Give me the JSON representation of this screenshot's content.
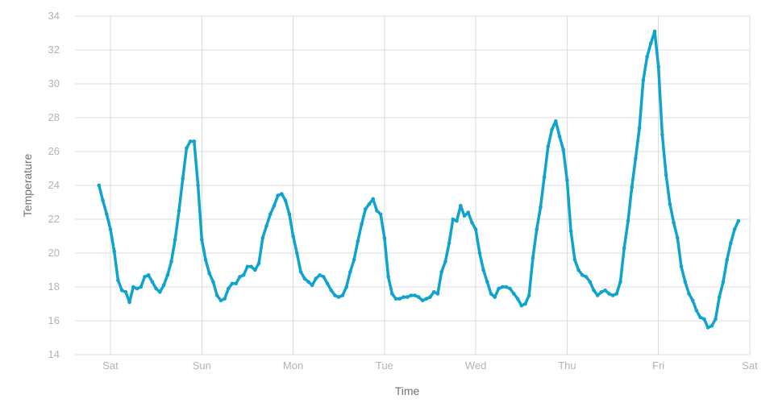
{
  "chart_data": {
    "type": "line",
    "title": "",
    "xlabel": "Time",
    "ylabel": "Temperature",
    "ylim": [
      14,
      34
    ],
    "yticks": [
      "14",
      "16",
      "18",
      "20",
      "22",
      "24",
      "26",
      "28",
      "30",
      "32",
      "34"
    ],
    "xticks": [
      "Sat",
      "Sun",
      "Mon",
      "Tue",
      "Wed",
      "Thu",
      "Fri",
      "Sat"
    ],
    "x_unit": "hours from Sat 00:00",
    "xlim": [
      -3,
      168
    ],
    "grid": true,
    "line_color": "#0fa3cf",
    "series": [
      {
        "name": "",
        "points": [
          [
            -3,
            24.0
          ],
          [
            -2,
            23.1
          ],
          [
            -1,
            22.3
          ],
          [
            0,
            21.4
          ],
          [
            1,
            20.1
          ],
          [
            2,
            18.4
          ],
          [
            3,
            17.8
          ],
          [
            4,
            17.7
          ],
          [
            5,
            17.1
          ],
          [
            6,
            18.0
          ],
          [
            7,
            17.9
          ],
          [
            8,
            18.0
          ],
          [
            9,
            18.6
          ],
          [
            10,
            18.7
          ],
          [
            11,
            18.3
          ],
          [
            12,
            17.9
          ],
          [
            13,
            17.7
          ],
          [
            14,
            18.1
          ],
          [
            15,
            18.7
          ],
          [
            16,
            19.5
          ],
          [
            17,
            20.8
          ],
          [
            18,
            22.5
          ],
          [
            19,
            24.4
          ],
          [
            20,
            26.2
          ],
          [
            21,
            26.6
          ],
          [
            22,
            26.6
          ],
          [
            23,
            24.0
          ],
          [
            24,
            20.8
          ],
          [
            25,
            19.6
          ],
          [
            26,
            18.8
          ],
          [
            27,
            18.3
          ],
          [
            28,
            17.5
          ],
          [
            29,
            17.2
          ],
          [
            30,
            17.3
          ],
          [
            31,
            17.9
          ],
          [
            32,
            18.2
          ],
          [
            33,
            18.2
          ],
          [
            34,
            18.6
          ],
          [
            35,
            18.7
          ],
          [
            36,
            19.2
          ],
          [
            37,
            19.2
          ],
          [
            38,
            19.0
          ],
          [
            39,
            19.4
          ],
          [
            40,
            20.9
          ],
          [
            41,
            21.6
          ],
          [
            42,
            22.3
          ],
          [
            43,
            22.8
          ],
          [
            44,
            23.4
          ],
          [
            45,
            23.5
          ],
          [
            46,
            23.1
          ],
          [
            47,
            22.3
          ],
          [
            48,
            21.0
          ],
          [
            49,
            20.0
          ],
          [
            50,
            18.9
          ],
          [
            51,
            18.5
          ],
          [
            52,
            18.3
          ],
          [
            53,
            18.1
          ],
          [
            54,
            18.5
          ],
          [
            55,
            18.7
          ],
          [
            56,
            18.6
          ],
          [
            57,
            18.2
          ],
          [
            58,
            17.8
          ],
          [
            59,
            17.5
          ],
          [
            60,
            17.4
          ],
          [
            61,
            17.5
          ],
          [
            62,
            18.0
          ],
          [
            63,
            18.9
          ],
          [
            64,
            19.6
          ],
          [
            65,
            20.7
          ],
          [
            66,
            21.7
          ],
          [
            67,
            22.6
          ],
          [
            68,
            22.9
          ],
          [
            69,
            23.2
          ],
          [
            70,
            22.5
          ],
          [
            71,
            22.3
          ],
          [
            72,
            20.9
          ],
          [
            73,
            18.6
          ],
          [
            74,
            17.6
          ],
          [
            75,
            17.3
          ],
          [
            76,
            17.3
          ],
          [
            77,
            17.4
          ],
          [
            78,
            17.4
          ],
          [
            79,
            17.5
          ],
          [
            80,
            17.5
          ],
          [
            81,
            17.4
          ],
          [
            82,
            17.2
          ],
          [
            83,
            17.3
          ],
          [
            84,
            17.4
          ],
          [
            85,
            17.7
          ],
          [
            86,
            17.6
          ],
          [
            87,
            18.9
          ],
          [
            88,
            19.5
          ],
          [
            89,
            20.6
          ],
          [
            90,
            22.0
          ],
          [
            91,
            21.9
          ],
          [
            92,
            22.8
          ],
          [
            93,
            22.2
          ],
          [
            94,
            22.4
          ],
          [
            95,
            21.8
          ],
          [
            96,
            21.4
          ],
          [
            97,
            20.0
          ],
          [
            98,
            19.0
          ],
          [
            99,
            18.3
          ],
          [
            100,
            17.6
          ],
          [
            101,
            17.4
          ],
          [
            102,
            17.9
          ],
          [
            103,
            18.0
          ],
          [
            104,
            18.0
          ],
          [
            105,
            17.9
          ],
          [
            106,
            17.6
          ],
          [
            107,
            17.3
          ],
          [
            108,
            16.9
          ],
          [
            109,
            17.0
          ],
          [
            110,
            17.5
          ],
          [
            111,
            19.7
          ],
          [
            112,
            21.4
          ],
          [
            113,
            22.7
          ],
          [
            114,
            24.5
          ],
          [
            115,
            26.3
          ],
          [
            116,
            27.3
          ],
          [
            117,
            27.8
          ],
          [
            118,
            26.9
          ],
          [
            119,
            26.1
          ],
          [
            120,
            24.3
          ],
          [
            121,
            21.3
          ],
          [
            122,
            19.6
          ],
          [
            123,
            19.0
          ],
          [
            124,
            18.7
          ],
          [
            125,
            18.6
          ],
          [
            126,
            18.3
          ],
          [
            127,
            17.8
          ],
          [
            128,
            17.5
          ],
          [
            129,
            17.7
          ],
          [
            130,
            17.8
          ],
          [
            131,
            17.6
          ],
          [
            132,
            17.5
          ],
          [
            133,
            17.6
          ],
          [
            134,
            18.3
          ],
          [
            135,
            20.3
          ],
          [
            136,
            21.9
          ],
          [
            137,
            23.9
          ],
          [
            138,
            25.6
          ],
          [
            139,
            27.4
          ],
          [
            140,
            30.2
          ],
          [
            141,
            31.6
          ],
          [
            142,
            32.4
          ],
          [
            143,
            33.1
          ],
          [
            144,
            31.0
          ],
          [
            145,
            27.0
          ],
          [
            146,
            24.6
          ],
          [
            147,
            22.9
          ],
          [
            148,
            21.8
          ],
          [
            149,
            20.9
          ],
          [
            150,
            19.2
          ],
          [
            151,
            18.3
          ],
          [
            152,
            17.6
          ],
          [
            153,
            17.2
          ],
          [
            154,
            16.6
          ],
          [
            155,
            16.2
          ],
          [
            156,
            16.1
          ],
          [
            157,
            15.6
          ],
          [
            158,
            15.7
          ],
          [
            159,
            16.1
          ],
          [
            160,
            17.4
          ],
          [
            161,
            18.3
          ],
          [
            162,
            19.6
          ],
          [
            163,
            20.6
          ],
          [
            164,
            21.4
          ],
          [
            165,
            21.9
          ]
        ]
      }
    ]
  }
}
